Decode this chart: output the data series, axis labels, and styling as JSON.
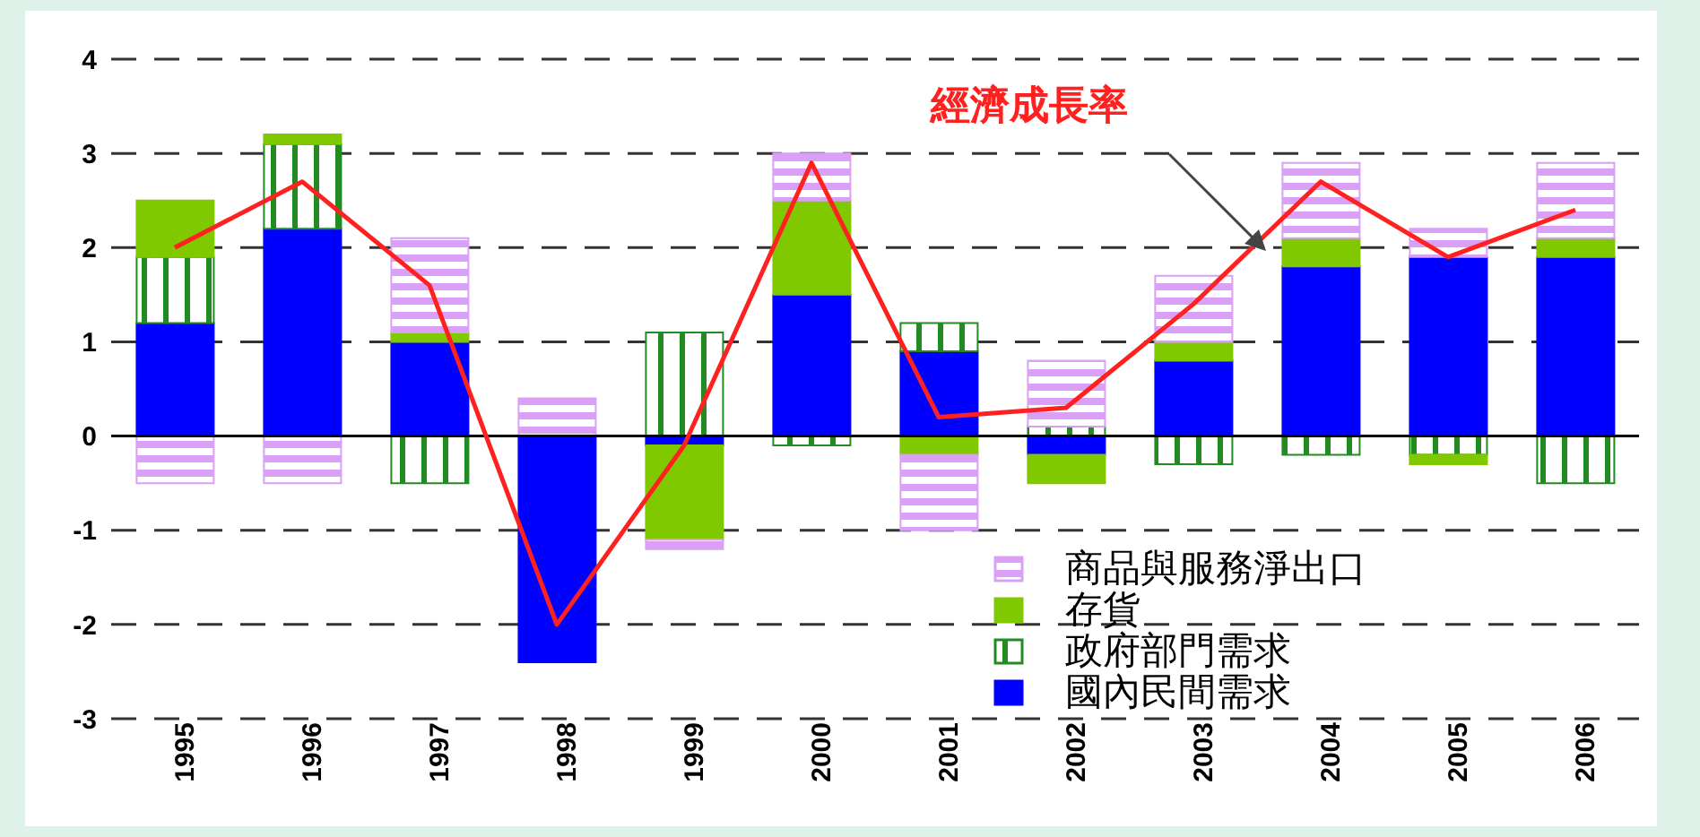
{
  "chart_data": {
    "type": "bar",
    "stacked": true,
    "categories": [
      "1995",
      "1996",
      "1997",
      "1998",
      "1999",
      "2000",
      "2001",
      "2002",
      "2003",
      "2004",
      "2005",
      "2006"
    ],
    "series": [
      {
        "name": "國內民間需求",
        "color": "#0000ff",
        "values": [
          1.2,
          2.2,
          1.0,
          -2.4,
          -0.1,
          1.5,
          0.9,
          -0.2,
          0.8,
          1.8,
          1.9,
          1.9
        ]
      },
      {
        "name": "政府部門需求",
        "color": "#228b22",
        "values": [
          0.7,
          0.9,
          -0.5,
          0,
          1.1,
          -0.1,
          0.3,
          0.1,
          -0.3,
          -0.2,
          -0.2,
          -0.5
        ]
      },
      {
        "name": "存貨",
        "color": "#80c800",
        "values": [
          0.6,
          0.1,
          0.1,
          0,
          -1.0,
          1.0,
          -0.2,
          -0.3,
          0.2,
          0.3,
          -0.1,
          0.2
        ]
      },
      {
        "name": "商品與服務淨出口",
        "color": "#d9a0f5",
        "values": [
          -0.5,
          -0.5,
          1.0,
          0.4,
          -0.1,
          0.5,
          -0.8,
          0.7,
          0.7,
          0.8,
          0.3,
          0.8
        ]
      },
      {
        "name": "經濟成長率",
        "type": "line",
        "color": "#ff2020",
        "values": [
          2.0,
          2.7,
          1.6,
          -2.0,
          -0.1,
          2.9,
          0.2,
          0.3,
          1.4,
          2.7,
          1.9,
          2.4
        ]
      }
    ],
    "ylim": [
      -3,
      4
    ],
    "yticks": [
      -3,
      -2,
      -1,
      0,
      1,
      2,
      3,
      4
    ],
    "grid": "y",
    "legend": "bottom right",
    "marker": "none",
    "ref_lines": [
      {
        "axis": "y",
        "value": 0,
        "color": "#000000"
      }
    ]
  }
}
